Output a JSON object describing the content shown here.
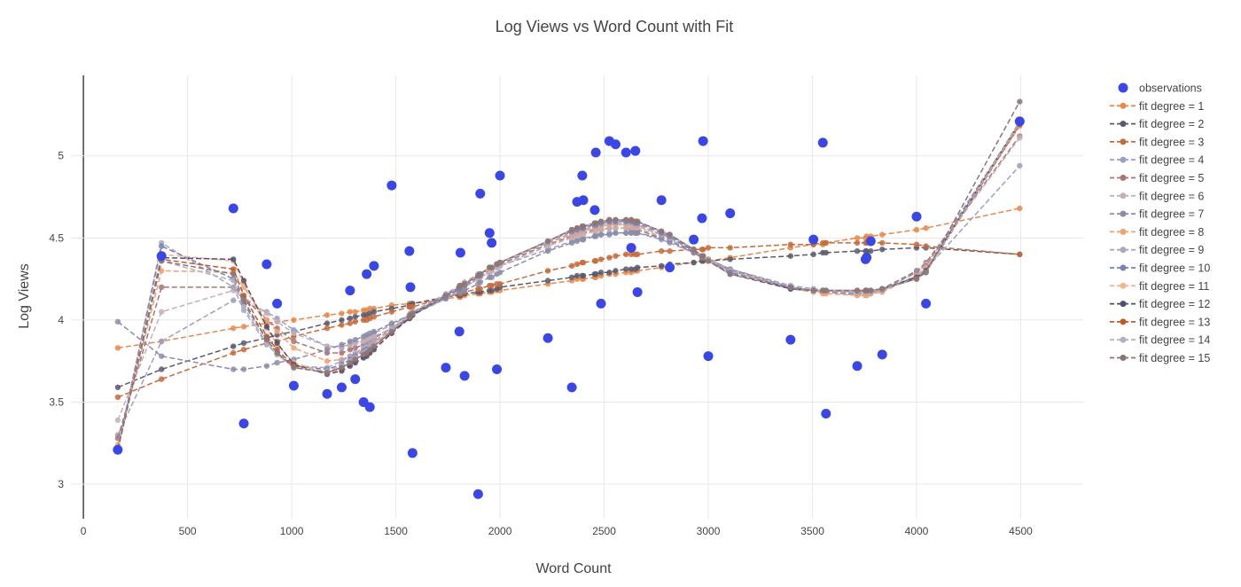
{
  "chart_data": {
    "type": "scatter",
    "title": "Log Views vs Word Count with Fit",
    "xlabel": "Word Count",
    "ylabel": "Log Views",
    "xlim": [
      -60,
      4800
    ],
    "ylim": [
      2.79,
      5.49
    ],
    "xticks": [
      0,
      500,
      1000,
      1500,
      2000,
      2500,
      3000,
      3500,
      4000,
      4500
    ],
    "yticks": [
      3,
      3.5,
      4,
      4.5,
      5
    ],
    "grid": true,
    "legend_position": "right",
    "observations": {
      "name": "observations",
      "color": "#3a47e6",
      "x": [
        165,
        375,
        720,
        770,
        880,
        930,
        1010,
        1170,
        1240,
        1280,
        1305,
        1345,
        1360,
        1375,
        1395,
        1480,
        1565,
        1570,
        1580,
        1740,
        1805,
        1810,
        1830,
        1895,
        1905,
        1950,
        1960,
        1985,
        2000,
        2230,
        2345,
        2370,
        2395,
        2400,
        2455,
        2460,
        2485,
        2525,
        2555,
        2605,
        2630,
        2650,
        2660,
        2775,
        2815,
        2930,
        2970,
        2975,
        3000,
        3105,
        3395,
        3505,
        3550,
        3565,
        3715,
        3755,
        3760,
        3780,
        3835,
        4000,
        4045,
        4495
      ],
      "y": [
        3.21,
        4.39,
        4.68,
        3.37,
        4.34,
        4.1,
        3.6,
        3.55,
        3.59,
        4.18,
        3.64,
        3.5,
        4.28,
        3.47,
        4.33,
        4.82,
        4.42,
        4.2,
        3.19,
        3.71,
        3.93,
        4.41,
        3.66,
        2.94,
        4.77,
        4.53,
        4.47,
        3.7,
        4.88,
        3.89,
        3.59,
        4.72,
        4.88,
        4.73,
        4.67,
        5.02,
        4.1,
        5.09,
        5.07,
        5.02,
        4.44,
        5.03,
        4.17,
        4.73,
        4.32,
        4.49,
        4.62,
        5.09,
        3.78,
        4.65,
        3.88,
        4.49,
        5.08,
        3.43,
        3.72,
        4.37,
        4.38,
        4.48,
        3.79,
        4.63,
        4.1,
        5.21
      ]
    },
    "fit_x": [
      165,
      375,
      720,
      770,
      880,
      930,
      1010,
      1170,
      1240,
      1280,
      1305,
      1345,
      1360,
      1375,
      1395,
      1480,
      1565,
      1570,
      1580,
      1740,
      1805,
      1810,
      1830,
      1895,
      1905,
      1950,
      1960,
      1985,
      2000,
      2230,
      2345,
      2370,
      2395,
      2400,
      2455,
      2460,
      2485,
      2525,
      2555,
      2605,
      2630,
      2650,
      2660,
      2775,
      2815,
      2930,
      2970,
      2975,
      3000,
      3105,
      3395,
      3505,
      3550,
      3565,
      3715,
      3755,
      3760,
      3780,
      3835,
      4000,
      4045,
      4495
    ],
    "fit_series": [
      {
        "name": "fit degree = 1",
        "color": "#e8884a",
        "y": [
          3.83,
          3.87,
          3.95,
          3.96,
          3.98,
          3.99,
          4.0,
          4.03,
          4.04,
          4.05,
          4.05,
          4.06,
          4.06,
          4.07,
          4.07,
          4.09,
          4.1,
          4.1,
          4.1,
          4.13,
          4.14,
          4.14,
          4.15,
          4.16,
          4.16,
          4.17,
          4.17,
          4.18,
          4.18,
          4.22,
          4.24,
          4.25,
          4.25,
          4.25,
          4.26,
          4.26,
          4.27,
          4.28,
          4.28,
          4.29,
          4.29,
          4.3,
          4.3,
          4.32,
          4.33,
          4.35,
          4.36,
          4.36,
          4.36,
          4.38,
          4.44,
          4.46,
          4.46,
          4.47,
          4.5,
          4.5,
          4.51,
          4.51,
          4.52,
          4.55,
          4.56,
          4.68
        ]
      },
      {
        "name": "fit degree = 2",
        "color": "#5a5a6e",
        "y": [
          3.59,
          3.7,
          3.84,
          3.86,
          3.89,
          3.91,
          3.93,
          3.98,
          4.0,
          4.01,
          4.02,
          4.03,
          4.03,
          4.04,
          4.05,
          4.07,
          4.09,
          4.09,
          4.1,
          4.14,
          4.15,
          4.15,
          4.16,
          4.17,
          4.17,
          4.18,
          4.18,
          4.19,
          4.2,
          4.24,
          4.26,
          4.27,
          4.27,
          4.27,
          4.28,
          4.28,
          4.29,
          4.29,
          4.3,
          4.31,
          4.31,
          4.31,
          4.32,
          4.33,
          4.34,
          4.35,
          4.36,
          4.36,
          4.36,
          4.37,
          4.39,
          4.4,
          4.41,
          4.41,
          4.42,
          4.42,
          4.42,
          4.42,
          4.43,
          4.44,
          4.44,
          4.4
        ]
      },
      {
        "name": "fit degree = 3",
        "color": "#c76a3a",
        "y": [
          3.53,
          3.64,
          3.8,
          3.82,
          3.86,
          3.87,
          3.9,
          3.95,
          3.97,
          3.98,
          3.99,
          4.0,
          4.0,
          4.01,
          4.02,
          4.05,
          4.08,
          4.08,
          4.08,
          4.14,
          4.16,
          4.16,
          4.17,
          4.19,
          4.19,
          4.21,
          4.21,
          4.22,
          4.22,
          4.3,
          4.33,
          4.34,
          4.35,
          4.35,
          4.36,
          4.36,
          4.37,
          4.38,
          4.39,
          4.4,
          4.4,
          4.4,
          4.4,
          4.42,
          4.42,
          4.43,
          4.43,
          4.43,
          4.44,
          4.44,
          4.46,
          4.46,
          4.47,
          4.47,
          4.47,
          4.47,
          4.47,
          4.47,
          4.47,
          4.46,
          4.45,
          4.4
        ]
      },
      {
        "name": "fit degree = 4",
        "color": "#9aa0c8",
        "y": [
          3.3,
          3.87,
          4.12,
          4.11,
          4.05,
          4.01,
          3.94,
          3.84,
          3.83,
          3.85,
          3.86,
          3.88,
          3.89,
          3.9,
          3.92,
          3.97,
          4.03,
          4.04,
          4.05,
          4.14,
          4.18,
          4.19,
          4.2,
          4.25,
          4.26,
          4.29,
          4.3,
          4.32,
          4.33,
          4.43,
          4.48,
          4.49,
          4.5,
          4.5,
          4.51,
          4.52,
          4.52,
          4.53,
          4.53,
          4.53,
          4.53,
          4.53,
          4.53,
          4.49,
          4.47,
          4.41,
          4.38,
          4.38,
          4.37,
          4.31,
          4.21,
          4.19,
          4.18,
          4.18,
          4.17,
          4.17,
          4.17,
          4.17,
          4.18,
          4.27,
          4.31,
          4.94
        ]
      },
      {
        "name": "fit degree = 5",
        "color": "#a97575",
        "y": [
          3.28,
          4.2,
          4.2,
          4.14,
          4.0,
          3.95,
          3.87,
          3.8,
          3.8,
          3.82,
          3.83,
          3.85,
          3.86,
          3.87,
          3.89,
          3.95,
          4.02,
          4.03,
          4.04,
          4.14,
          4.19,
          4.2,
          4.21,
          4.26,
          4.27,
          4.3,
          4.31,
          4.33,
          4.34,
          4.46,
          4.51,
          4.52,
          4.53,
          4.53,
          4.55,
          4.55,
          4.55,
          4.56,
          4.56,
          4.56,
          4.55,
          4.55,
          4.55,
          4.5,
          4.48,
          4.41,
          4.38,
          4.38,
          4.36,
          4.3,
          4.2,
          4.18,
          4.17,
          4.17,
          4.16,
          4.16,
          4.16,
          4.17,
          4.19,
          4.3,
          4.35,
          5.12
        ]
      },
      {
        "name": "fit degree = 6",
        "color": "#c4b0b8",
        "y": [
          3.39,
          4.05,
          4.18,
          4.14,
          4.04,
          3.99,
          3.92,
          3.84,
          3.84,
          3.85,
          3.86,
          3.87,
          3.88,
          3.89,
          3.9,
          3.95,
          4.01,
          4.02,
          4.03,
          4.13,
          4.18,
          4.19,
          4.2,
          4.25,
          4.26,
          4.29,
          4.3,
          4.32,
          4.33,
          4.45,
          4.5,
          4.51,
          4.52,
          4.52,
          4.54,
          4.54,
          4.55,
          4.56,
          4.56,
          4.56,
          4.56,
          4.56,
          4.56,
          4.51,
          4.49,
          4.42,
          4.39,
          4.39,
          4.37,
          4.31,
          4.2,
          4.18,
          4.17,
          4.17,
          4.15,
          4.15,
          4.15,
          4.16,
          4.18,
          4.29,
          4.34,
          5.11
        ]
      },
      {
        "name": "fit degree = 7",
        "color": "#8c8ca8",
        "y": [
          3.99,
          3.78,
          3.7,
          3.7,
          3.72,
          3.74,
          3.76,
          3.82,
          3.85,
          3.87,
          3.88,
          3.9,
          3.91,
          3.92,
          3.93,
          3.98,
          4.03,
          4.04,
          4.04,
          4.13,
          4.17,
          4.17,
          4.18,
          4.22,
          4.23,
          4.26,
          4.26,
          4.28,
          4.29,
          4.42,
          4.47,
          4.48,
          4.49,
          4.49,
          4.51,
          4.51,
          4.52,
          4.52,
          4.53,
          4.53,
          4.53,
          4.53,
          4.53,
          4.5,
          4.48,
          4.42,
          4.39,
          4.39,
          4.37,
          4.31,
          4.2,
          4.18,
          4.17,
          4.17,
          4.16,
          4.16,
          4.16,
          4.17,
          4.19,
          4.29,
          4.33,
          5.2
        ]
      },
      {
        "name": "fit degree = 8",
        "color": "#f0a274",
        "y": [
          3.24,
          4.3,
          4.29,
          4.2,
          4.0,
          3.93,
          3.83,
          3.75,
          3.76,
          3.78,
          3.79,
          3.82,
          3.83,
          3.84,
          3.86,
          3.94,
          4.02,
          4.03,
          4.04,
          4.15,
          4.2,
          4.21,
          4.22,
          4.27,
          4.28,
          4.32,
          4.32,
          4.34,
          4.35,
          4.47,
          4.52,
          4.53,
          4.54,
          4.54,
          4.56,
          4.56,
          4.57,
          4.58,
          4.58,
          4.58,
          4.58,
          4.58,
          4.57,
          4.52,
          4.5,
          4.42,
          4.39,
          4.39,
          4.37,
          4.3,
          4.19,
          4.17,
          4.16,
          4.16,
          4.15,
          4.15,
          4.15,
          4.16,
          4.17,
          4.27,
          4.32,
          5.18
        ]
      },
      {
        "name": "fit degree = 9",
        "color": "#a8a8c0",
        "y": [
          3.21,
          4.47,
          4.2,
          4.06,
          3.85,
          3.79,
          3.72,
          3.71,
          3.75,
          3.78,
          3.8,
          3.83,
          3.84,
          3.85,
          3.87,
          3.95,
          4.03,
          4.04,
          4.05,
          4.16,
          4.21,
          4.21,
          4.23,
          4.28,
          4.28,
          4.32,
          4.32,
          4.34,
          4.35,
          4.47,
          4.53,
          4.54,
          4.55,
          4.55,
          4.57,
          4.57,
          4.58,
          4.59,
          4.59,
          4.59,
          4.59,
          4.58,
          4.58,
          4.52,
          4.5,
          4.42,
          4.39,
          4.39,
          4.37,
          4.3,
          4.2,
          4.18,
          4.18,
          4.18,
          4.17,
          4.17,
          4.17,
          4.17,
          4.18,
          4.26,
          4.3,
          5.21
        ]
      },
      {
        "name": "fit degree = 10",
        "color": "#7a80b8",
        "y": [
          3.22,
          4.45,
          4.25,
          4.1,
          3.88,
          3.8,
          3.72,
          3.7,
          3.73,
          3.76,
          3.78,
          3.81,
          3.82,
          3.83,
          3.85,
          3.93,
          4.01,
          4.02,
          4.03,
          4.14,
          4.19,
          4.2,
          4.21,
          4.27,
          4.27,
          4.31,
          4.32,
          4.34,
          4.35,
          4.48,
          4.54,
          4.55,
          4.56,
          4.56,
          4.58,
          4.58,
          4.59,
          4.6,
          4.6,
          4.6,
          4.6,
          4.59,
          4.59,
          4.53,
          4.51,
          4.42,
          4.39,
          4.39,
          4.36,
          4.29,
          4.19,
          4.18,
          4.18,
          4.18,
          4.18,
          4.18,
          4.18,
          4.18,
          4.19,
          4.26,
          4.3,
          5.2
        ]
      },
      {
        "name": "fit degree = 11",
        "color": "#f2b48c",
        "y": [
          3.21,
          4.4,
          4.36,
          4.22,
          3.95,
          3.85,
          3.74,
          3.68,
          3.7,
          3.73,
          3.75,
          3.78,
          3.79,
          3.8,
          3.83,
          3.92,
          4.01,
          4.02,
          4.03,
          4.15,
          4.2,
          4.21,
          4.22,
          4.27,
          4.28,
          4.31,
          4.32,
          4.34,
          4.35,
          4.48,
          4.55,
          4.56,
          4.57,
          4.57,
          4.59,
          4.59,
          4.6,
          4.61,
          4.61,
          4.61,
          4.61,
          4.6,
          4.6,
          4.54,
          4.52,
          4.43,
          4.39,
          4.39,
          4.36,
          4.28,
          4.19,
          4.18,
          4.18,
          4.18,
          4.18,
          4.18,
          4.18,
          4.18,
          4.19,
          4.26,
          4.3,
          5.2
        ]
      },
      {
        "name": "fit degree = 12",
        "color": "#4e4e70",
        "y": [
          3.21,
          4.38,
          4.37,
          4.24,
          3.96,
          3.86,
          3.73,
          3.67,
          3.69,
          3.72,
          3.74,
          3.77,
          3.78,
          3.8,
          3.82,
          3.92,
          4.01,
          4.02,
          4.03,
          4.15,
          4.2,
          4.21,
          4.22,
          4.27,
          4.28,
          4.32,
          4.32,
          4.34,
          4.35,
          4.48,
          4.55,
          4.56,
          4.57,
          4.57,
          4.59,
          4.59,
          4.6,
          4.61,
          4.61,
          4.61,
          4.61,
          4.6,
          4.6,
          4.54,
          4.52,
          4.43,
          4.39,
          4.39,
          4.36,
          4.28,
          4.19,
          4.18,
          4.18,
          4.18,
          4.18,
          4.18,
          4.18,
          4.18,
          4.19,
          4.26,
          4.3,
          5.2
        ]
      },
      {
        "name": "fit degree = 13",
        "color": "#c05a28",
        "y": [
          3.21,
          4.37,
          4.31,
          4.15,
          3.9,
          3.82,
          3.72,
          3.68,
          3.71,
          3.74,
          3.76,
          3.79,
          3.8,
          3.82,
          3.84,
          3.93,
          4.02,
          4.03,
          4.04,
          4.15,
          4.2,
          4.21,
          4.22,
          4.27,
          4.28,
          4.32,
          4.32,
          4.34,
          4.35,
          4.48,
          4.55,
          4.56,
          4.57,
          4.57,
          4.59,
          4.59,
          4.6,
          4.61,
          4.61,
          4.61,
          4.61,
          4.6,
          4.6,
          4.54,
          4.52,
          4.43,
          4.39,
          4.39,
          4.36,
          4.28,
          4.2,
          4.18,
          4.18,
          4.18,
          4.18,
          4.18,
          4.18,
          4.18,
          4.19,
          4.25,
          4.29,
          5.19
        ]
      },
      {
        "name": "fit degree = 14",
        "color": "#b4b0c4",
        "y": [
          3.21,
          4.36,
          4.24,
          4.08,
          3.86,
          3.79,
          3.71,
          3.69,
          3.72,
          3.75,
          3.77,
          3.8,
          3.81,
          3.83,
          3.85,
          3.94,
          4.02,
          4.03,
          4.04,
          4.15,
          4.2,
          4.21,
          4.22,
          4.27,
          4.28,
          4.32,
          4.32,
          4.34,
          4.35,
          4.48,
          4.55,
          4.56,
          4.57,
          4.57,
          4.59,
          4.59,
          4.6,
          4.61,
          4.61,
          4.61,
          4.61,
          4.6,
          4.6,
          4.54,
          4.52,
          4.43,
          4.39,
          4.39,
          4.36,
          4.28,
          4.2,
          4.18,
          4.18,
          4.18,
          4.18,
          4.18,
          4.18,
          4.18,
          4.19,
          4.25,
          4.29,
          5.2
        ]
      },
      {
        "name": "fit degree = 15",
        "color": "#8a7474",
        "y": [
          3.21,
          4.36,
          4.28,
          4.12,
          3.88,
          3.8,
          3.71,
          3.68,
          3.71,
          3.74,
          3.76,
          3.79,
          3.8,
          3.82,
          3.84,
          3.93,
          4.02,
          4.03,
          4.04,
          4.15,
          4.2,
          4.21,
          4.22,
          4.27,
          4.28,
          4.32,
          4.32,
          4.34,
          4.35,
          4.48,
          4.55,
          4.56,
          4.57,
          4.57,
          4.59,
          4.59,
          4.6,
          4.61,
          4.61,
          4.61,
          4.61,
          4.6,
          4.6,
          4.54,
          4.52,
          4.43,
          4.39,
          4.39,
          4.36,
          4.28,
          4.2,
          4.18,
          4.18,
          4.18,
          4.18,
          4.18,
          4.18,
          4.18,
          4.19,
          4.25,
          4.29,
          5.33
        ]
      }
    ]
  }
}
